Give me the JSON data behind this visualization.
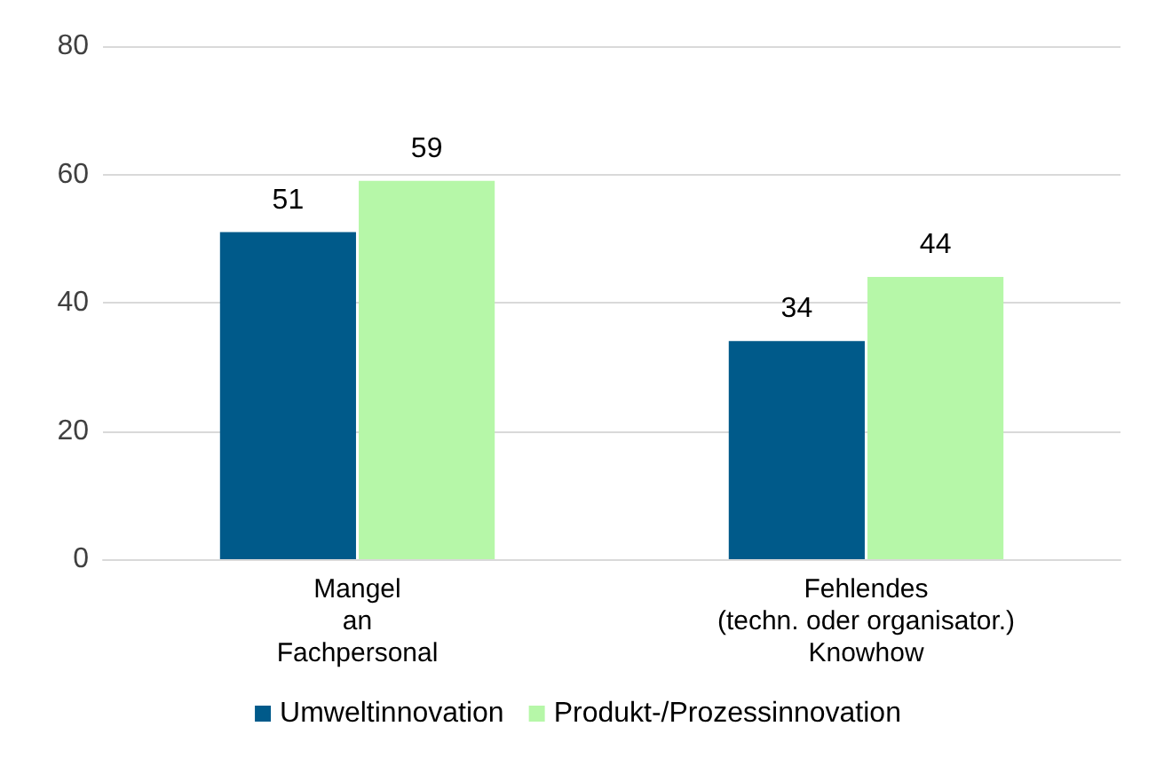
{
  "chart_data": {
    "type": "bar",
    "categories": [
      "Mangel\nan\nFachpersonal",
      "Fehlendes\n(techn. oder organisator.)\nKnowhow"
    ],
    "series": [
      {
        "name": "Umweltinnovation",
        "color": "#005a8a",
        "values": [
          51,
          34
        ]
      },
      {
        "name": "Produkt-/Prozessinnovation",
        "color": "#b6f7a8",
        "values": [
          59,
          44
        ]
      }
    ],
    "ylim": [
      0,
      80
    ],
    "yticks": [
      0,
      20,
      40,
      60,
      80
    ],
    "grid": "y",
    "legend": "bottom",
    "data_labels": true
  }
}
